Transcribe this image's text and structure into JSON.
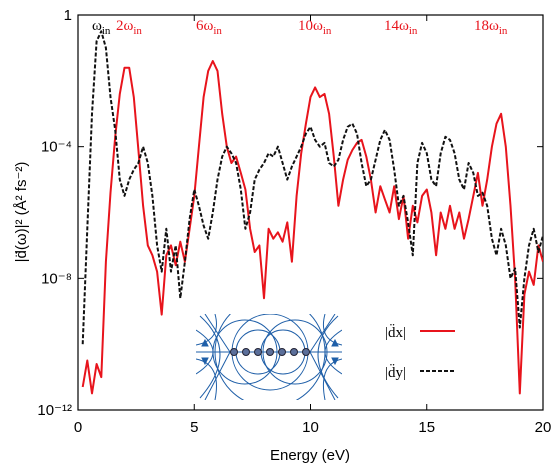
{
  "chart_data": {
    "type": "line",
    "x_label": "Energy (eV)",
    "y_label": "|d̈(ω)|² (Å² fs⁻²)",
    "log_y": true,
    "xlim": [
      0,
      20
    ],
    "xticks": [
      0,
      5,
      10,
      15,
      20
    ],
    "ylim": [
      1e-12,
      1
    ],
    "yticks": [
      {
        "value": 1e-12,
        "label": "10⁻¹²"
      },
      {
        "value": 1e-08,
        "label": "10⁻⁸"
      },
      {
        "value": 0.0001,
        "label": "10⁻⁴"
      },
      1
    ],
    "annotations": [
      {
        "text": "ω",
        "sub": "in",
        "color": "#000000"
      },
      {
        "text": "2ω",
        "sub": "in",
        "color": "#e8141c"
      },
      {
        "text": "6ω",
        "sub": "in",
        "color": "#e8141c"
      },
      {
        "text": "10ω",
        "sub": "in",
        "color": "#e8141c"
      },
      {
        "text": "14ω",
        "sub": "in",
        "color": "#e8141c"
      },
      {
        "text": "18ω",
        "sub": "in",
        "color": "#e8141c"
      }
    ],
    "x": [
      0.2,
      0.4,
      0.6,
      0.8,
      1.0,
      1.2,
      1.4,
      1.6,
      1.8,
      2.0,
      2.2,
      2.4,
      2.6,
      2.8,
      3.0,
      3.2,
      3.4,
      3.6,
      3.8,
      4.0,
      4.2,
      4.4,
      4.6,
      4.8,
      5.0,
      5.2,
      5.4,
      5.6,
      5.8,
      6.0,
      6.2,
      6.4,
      6.6,
      6.8,
      7.0,
      7.2,
      7.4,
      7.6,
      7.8,
      8.0,
      8.2,
      8.4,
      8.6,
      8.8,
      9.0,
      9.2,
      9.4,
      9.6,
      9.8,
      10.0,
      10.2,
      10.4,
      10.6,
      10.8,
      11.0,
      11.2,
      11.4,
      11.6,
      11.8,
      12.0,
      12.2,
      12.4,
      12.6,
      12.8,
      13.0,
      13.2,
      13.4,
      13.6,
      13.8,
      14.0,
      14.2,
      14.4,
      14.6,
      14.8,
      15.0,
      15.2,
      15.4,
      15.6,
      15.8,
      16.0,
      16.2,
      16.4,
      16.6,
      16.8,
      17.0,
      17.2,
      17.4,
      17.6,
      17.8,
      18.0,
      18.2,
      18.4,
      18.6,
      18.8,
      19.0,
      19.2,
      19.4,
      19.6,
      19.8,
      20.0
    ],
    "series": [
      {
        "name": "|d̈x|",
        "color": "#e8141c",
        "dash": false,
        "values": [
          5e-12,
          3.2e-11,
          3.2e-12,
          2.5e-11,
          1e-11,
          3.2e-08,
          4e-06,
          0.0002,
          0.004,
          0.025,
          0.025,
          0.0032,
          7.9e-05,
          1.6e-06,
          1e-07,
          5e-08,
          1.6e-08,
          7.9e-10,
          5e-08,
          1e-07,
          2.5e-08,
          1.3e-07,
          3.2e-08,
          3.2e-07,
          3.2e-06,
          0.0001,
          0.0032,
          0.02,
          0.04,
          0.02,
          0.001,
          0.0001,
          3.2e-05,
          5e-05,
          1.6e-05,
          5e-06,
          3.2e-07,
          6.3e-08,
          1e-07,
          2.5e-09,
          3.2e-07,
          1.6e-07,
          2.5e-07,
          1.3e-07,
          5e-07,
          3.2e-08,
          3.2e-06,
          6.3e-05,
          0.0005,
          0.0032,
          0.0063,
          0.0032,
          0.004,
          0.001,
          5e-05,
          1.6e-06,
          1e-05,
          4e-05,
          7.9e-05,
          0.00013,
          0.00016,
          5e-05,
          1e-05,
          1e-06,
          6.3e-06,
          2.5e-06,
          1e-06,
          6.3e-06,
          6.3e-07,
          3.2e-06,
          1.6e-07,
          1.6e-06,
          5e-07,
          3.2e-06,
          5e-06,
          1e-06,
          5e-08,
          1e-06,
          3.2e-07,
          1.6e-06,
          3.2e-07,
          1e-06,
          1.6e-07,
          6.3e-07,
          3.2e-06,
          1.6e-05,
          1.6e-06,
          1e-05,
          0.0001,
          0.0005,
          0.001,
          0.0001,
          1.6e-06,
          1e-08,
          3.2e-12,
          3.2e-09,
          1.6e-08,
          6.3e-09,
          1e-07,
          3.2e-08
        ]
      },
      {
        "name": "|d̈y|",
        "color": "#111111",
        "dash": true,
        "values": [
          1e-10,
          3.2e-07,
          0.001,
          0.16,
          0.32,
          0.1,
          0.0032,
          0.00032,
          1e-05,
          3.2e-06,
          1e-05,
          2e-05,
          3.2e-05,
          0.0001,
          3.2e-05,
          3.2e-06,
          1e-07,
          1.6e-08,
          3.2e-07,
          1.6e-08,
          1e-07,
          2.5e-09,
          3.2e-08,
          6.3e-07,
          5e-06,
          1.6e-06,
          4e-07,
          1.6e-07,
          1e-06,
          1e-05,
          5e-05,
          0.0001,
          6.3e-05,
          3.2e-05,
          5e-06,
          3.2e-07,
          1e-06,
          1e-05,
          2e-05,
          3.2e-05,
          6.3e-05,
          5e-05,
          0.0001,
          3.2e-05,
          1e-05,
          2.5e-05,
          5e-05,
          0.0001,
          0.00025,
          0.0004,
          0.00016,
          0.0001,
          0.00013,
          3.2e-05,
          2.5e-05,
          4e-05,
          0.00016,
          0.0004,
          0.0005,
          0.00025,
          3.2e-05,
          6.3e-06,
          1e-05,
          4e-05,
          0.00016,
          0.00032,
          0.00016,
          2e-05,
          1.6e-06,
          3.2e-06,
          5e-07,
          5e-08,
          3.2e-05,
          0.00013,
          6.3e-05,
          1e-05,
          6.3e-06,
          6.3e-05,
          0.0002,
          0.00016,
          6.3e-05,
          1e-05,
          5e-06,
          3.2e-05,
          1.6e-05,
          3.2e-06,
          4e-06,
          1.6e-06,
          1.6e-07,
          5e-08,
          3.2e-07,
          1e-07,
          1e-08,
          2e-08,
          3.2e-10,
          1e-08,
          1e-07,
          3.2e-07,
          6.3e-08,
          2e-07
        ]
      }
    ]
  }
}
